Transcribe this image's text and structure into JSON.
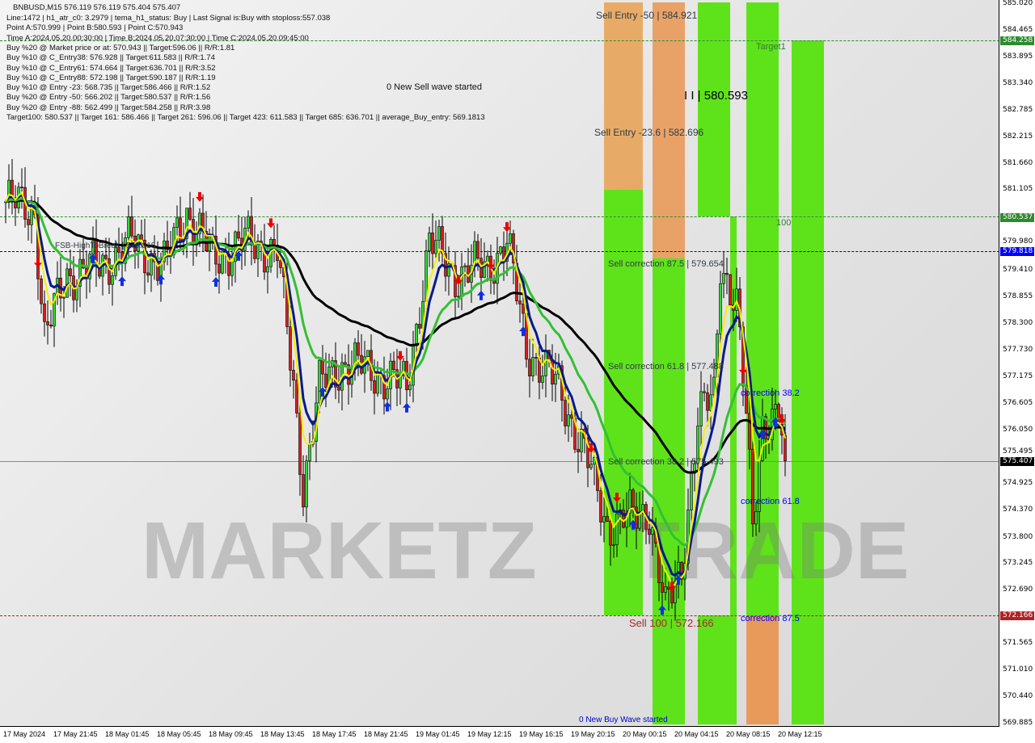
{
  "header": {
    "symbol_line": "BNBUSD,M15  576.119 576.119 575.404 575.407",
    "info_lines": [
      "Line:1472 | h1_atr_c0: 3.2979 | tema_h1_status: Buy | Last Signal is:Buy with stoploss:557.038",
      "Point A:570.999 | Point B:580.593 | Point C:570.943",
      "Time A:2024.05.20.00:30:00 | Time B:2024.05.20.07:30:00 | Time C:2024.05.20.09:45:00",
      "Buy %20 @ Market price or at: 570.943 || Target:596.06 || R/R:1.81",
      "Buy %10 @ C_Entry38: 576.928 || Target:611.583 || R/R:1.74",
      "Buy %10 @ C_Entry61: 574.664 || Target:636.701 || R/R:3.52",
      "Buy %10 @ C_Entry88: 572.198 || Target:590.187 || R/R:1.19",
      "Buy %10 @ Entry -23: 568.735 || Target:586.466 || R/R:1.52",
      "Buy %20 @ Entry -50: 566.202 || Target:580.537 || R/R:1.56",
      "Buy %20 @ Entry -88: 562.499 || Target:584.258 || R/R:3.98",
      "Target100: 580.537 || Target 161: 586.466 || Target 261: 596.06 || Target 423: 611.583 || Target 685: 636.701 || average_Buy_entry: 569.1813"
    ]
  },
  "annotations": {
    "new_sell_wave": "0 New Sell wave started",
    "new_buy_wave": "0 New Buy Wave started",
    "sell_entry_50": "Sell Entry -50 | 584.921",
    "sell_entry_236": "Sell Entry -23.6 | 582.696",
    "point_b": "I I | 580.593",
    "target1": "Target1",
    "level_100": "100",
    "sell_corr_875": "Sell correction 87.5 | 579.654",
    "sell_corr_618": "Sell correction 61.8 | 577.488",
    "sell_corr_382": "Sell correction 38.2 | 575.493",
    "sell_100": "Sell 100 | 572.166",
    "corr_382": "correction 38.2",
    "corr_618": "correction 61.8",
    "corr_875": "correction 87.5",
    "fsb": "FSB-HighToBreak | 579.818"
  },
  "watermark": {
    "left": "MARKETZ",
    "right": "TRADE"
  },
  "colors": {
    "bull": "#33d633",
    "bear": "#d81e1e",
    "zone_green": "#5ee31a",
    "zone_orange": "#e89a5a",
    "ma_slow": "#000000",
    "ma_green": "#33c033",
    "ma_navy": "#0a1a8a",
    "ma_yellow": "#f5f000",
    "level_green": "#2e8b2e",
    "level_blue": "#0000ff",
    "level_current": "#000000",
    "level_red": "#b22222"
  },
  "chart_data": {
    "type": "candlestick",
    "title": "BNBUSD,M15",
    "ylim": [
      569.885,
      585.02
    ],
    "y_ticks": [
      "585.020",
      "584.465",
      "583.895",
      "583.340",
      "582.785",
      "582.215",
      "581.660",
      "581.105",
      "579.980",
      "579.410",
      "578.855",
      "578.300",
      "577.730",
      "577.175",
      "576.605",
      "576.050",
      "575.495",
      "574.925",
      "574.370",
      "573.800",
      "573.245",
      "572.690",
      "571.565",
      "571.010",
      "570.440",
      "569.885"
    ],
    "x_ticks": [
      "17 May 2024",
      "17 May 21:45",
      "18 May 01:45",
      "18 May 05:45",
      "18 May 09:45",
      "18 May 13:45",
      "18 May 17:45",
      "18 May 21:45",
      "19 May 01:45",
      "19 May 12:15",
      "19 May 16:15",
      "19 May 20:15",
      "20 May 00:15",
      "20 May 04:15",
      "20 May 08:15",
      "20 May 12:15"
    ],
    "price_tags": [
      {
        "label": "584.258",
        "price": 584.258,
        "color": "#2e8b2e"
      },
      {
        "label": "580.537",
        "price": 580.537,
        "color": "#2e8b2e"
      },
      {
        "label": "579.818",
        "price": 579.818,
        "color": "#0000ff"
      },
      {
        "label": "575.407",
        "price": 575.407,
        "color": "#000000"
      },
      {
        "label": "572.166",
        "price": 572.166,
        "color": "#b22222"
      }
    ],
    "approx_close_path": [
      {
        "bar": 0,
        "price": 580.86
      },
      {
        "bar": 9,
        "price": 580.69
      },
      {
        "bar": 12,
        "price": 577.97
      },
      {
        "bar": 19,
        "price": 579.33
      },
      {
        "bar": 29,
        "price": 579.5
      },
      {
        "bar": 39,
        "price": 580.01
      },
      {
        "bar": 49,
        "price": 579.5
      },
      {
        "bar": 56,
        "price": 580.69
      },
      {
        "bar": 64,
        "price": 579.67
      },
      {
        "bar": 74,
        "price": 580.01
      },
      {
        "bar": 84,
        "price": 579.84
      },
      {
        "bar": 89,
        "price": 576.95
      },
      {
        "bar": 92,
        "price": 574.91
      },
      {
        "bar": 97,
        "price": 576.95
      },
      {
        "bar": 104,
        "price": 577.46
      },
      {
        "bar": 114,
        "price": 577.29
      },
      {
        "bar": 124,
        "price": 576.95
      },
      {
        "bar": 131,
        "price": 580.01
      },
      {
        "bar": 139,
        "price": 579.33
      },
      {
        "bar": 149,
        "price": 579.5
      },
      {
        "bar": 155,
        "price": 580.01
      },
      {
        "bar": 161,
        "price": 577.8
      },
      {
        "bar": 171,
        "price": 576.95
      },
      {
        "bar": 179,
        "price": 575.59
      },
      {
        "bar": 186,
        "price": 574.06
      },
      {
        "bar": 194,
        "price": 574.23
      },
      {
        "bar": 199,
        "price": 574.4
      },
      {
        "bar": 204,
        "price": 572.19
      },
      {
        "bar": 209,
        "price": 573.21
      },
      {
        "bar": 214,
        "price": 576.27
      },
      {
        "bar": 219,
        "price": 576.78
      },
      {
        "bar": 221,
        "price": 579.67
      },
      {
        "bar": 226,
        "price": 578.65
      },
      {
        "bar": 229,
        "price": 576.27
      },
      {
        "bar": 231,
        "price": 574.06
      },
      {
        "bar": 234,
        "price": 576.27
      },
      {
        "bar": 239,
        "price": 576.27
      },
      {
        "bar": 241,
        "price": 575.41
      }
    ]
  }
}
